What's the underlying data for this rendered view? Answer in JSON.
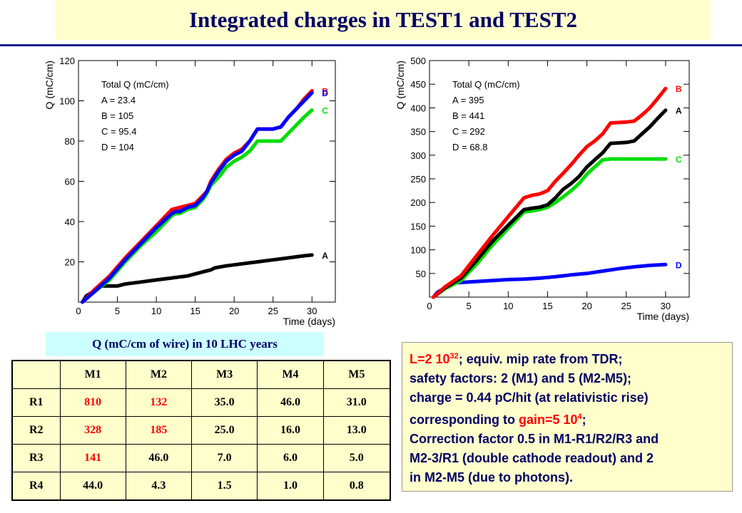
{
  "title": "Integrated charges in TEST1 and TEST2",
  "chart_data": [
    {
      "type": "line",
      "xlabel": "Time (days)",
      "ylabel": "Q (mC/cm)",
      "xlim": [
        0,
        33
      ],
      "ylim": [
        0,
        120
      ],
      "xticks": [
        0,
        5,
        10,
        15,
        20,
        25,
        30
      ],
      "yticks": [
        20,
        40,
        60,
        80,
        100,
        120
      ],
      "legend_title": "Total Q (mC/cm)",
      "legend_entries": [
        "A = 23.4",
        "B = 105",
        "C = 95.4",
        "D = 104"
      ],
      "series": [
        {
          "name": "A",
          "color": "#000000",
          "points": [
            [
              0.5,
              0
            ],
            [
              1,
              3
            ],
            [
              3,
              8
            ],
            [
              5,
              8
            ],
            [
              6,
              9
            ],
            [
              8,
              10
            ],
            [
              10,
              11
            ],
            [
              11,
              11.5
            ],
            [
              12,
              12
            ],
            [
              13,
              12.5
            ],
            [
              14,
              13
            ],
            [
              15,
              14
            ],
            [
              16,
              15
            ],
            [
              17,
              16
            ],
            [
              17.5,
              17
            ],
            [
              19,
              18
            ],
            [
              20,
              18.5
            ],
            [
              21,
              19
            ],
            [
              22,
              19.5
            ],
            [
              23,
              20
            ],
            [
              25,
              21
            ],
            [
              27,
              22
            ],
            [
              29,
              23
            ],
            [
              30,
              23.4
            ]
          ]
        },
        {
          "name": "C",
          "color": "#00dd00",
          "points": [
            [
              0.5,
              0
            ],
            [
              2,
              5
            ],
            [
              4,
              11
            ],
            [
              6,
              20
            ],
            [
              8,
              28
            ],
            [
              10,
              35
            ],
            [
              12,
              43
            ],
            [
              12.5,
              44
            ],
            [
              13,
              44
            ],
            [
              14,
              46
            ],
            [
              15,
              47
            ],
            [
              16,
              51
            ],
            [
              16.5,
              54
            ],
            [
              17,
              58
            ],
            [
              18,
              62
            ],
            [
              19,
              67
            ],
            [
              20,
              70
            ],
            [
              21,
              72
            ],
            [
              22,
              75
            ],
            [
              23,
              80
            ],
            [
              25,
              80
            ],
            [
              26,
              80
            ],
            [
              27,
              84
            ],
            [
              28,
              88
            ],
            [
              29,
              92
            ],
            [
              30,
              95.4
            ]
          ]
        },
        {
          "name": "B",
          "color": "#ff0000",
          "points": [
            [
              0.5,
              0
            ],
            [
              2,
              6
            ],
            [
              4,
              13
            ],
            [
              6,
              22
            ],
            [
              8,
              30
            ],
            [
              10,
              38
            ],
            [
              12,
              46
            ],
            [
              13,
              47
            ],
            [
              14,
              48
            ],
            [
              15,
              49
            ],
            [
              16,
              53
            ],
            [
              16.5,
              55
            ],
            [
              17,
              60
            ],
            [
              18,
              66
            ],
            [
              19,
              71
            ],
            [
              20,
              74
            ],
            [
              21,
              76
            ],
            [
              22,
              80
            ],
            [
              23,
              86
            ],
            [
              25,
              86
            ],
            [
              26,
              87
            ],
            [
              27,
              92
            ],
            [
              28,
              96
            ],
            [
              29,
              101
            ],
            [
              30,
              105
            ]
          ]
        },
        {
          "name": "D",
          "color": "#0000ff",
          "points": [
            [
              0.5,
              0
            ],
            [
              2,
              5
            ],
            [
              4,
              12
            ],
            [
              6,
              21
            ],
            [
              8,
              29
            ],
            [
              10,
              37
            ],
            [
              12,
              44
            ],
            [
              12.5,
              45
            ],
            [
              13,
              45
            ],
            [
              14,
              47
            ],
            [
              15,
              48
            ],
            [
              16,
              52
            ],
            [
              16.5,
              55
            ],
            [
              17,
              59
            ],
            [
              18,
              65
            ],
            [
              19,
              70
            ],
            [
              20,
              73
            ],
            [
              21,
              75
            ],
            [
              22,
              80
            ],
            [
              23,
              86
            ],
            [
              25,
              86
            ],
            [
              26,
              87
            ],
            [
              27,
              92
            ],
            [
              28,
              96
            ],
            [
              29,
              100
            ],
            [
              30,
              104
            ]
          ]
        }
      ]
    },
    {
      "type": "line",
      "xlabel": "Time (days)",
      "ylabel": "Q (mC/cm)",
      "xlim": [
        0,
        33
      ],
      "ylim": [
        0,
        500
      ],
      "xticks": [
        0,
        5,
        10,
        15,
        20,
        25,
        30
      ],
      "yticks": [
        50,
        100,
        150,
        200,
        250,
        300,
        350,
        400,
        450,
        500
      ],
      "legend_title": "Total Q (mC/cm)",
      "legend_entries": [
        "A = 395",
        "B = 441",
        "C = 292",
        "D = 68.8"
      ],
      "series": [
        {
          "name": "D",
          "color": "#0000ff",
          "points": [
            [
              0.5,
              0
            ],
            [
              1,
              10
            ],
            [
              2,
              20
            ],
            [
              3,
              30
            ],
            [
              5,
              32
            ],
            [
              8,
              35
            ],
            [
              10,
              37
            ],
            [
              12,
              38
            ],
            [
              14,
              40
            ],
            [
              16,
              43
            ],
            [
              18,
              47
            ],
            [
              20,
              50
            ],
            [
              22,
              55
            ],
            [
              24,
              60
            ],
            [
              26,
              64
            ],
            [
              28,
              67
            ],
            [
              30,
              68.8
            ]
          ]
        },
        {
          "name": "C",
          "color": "#00dd00",
          "points": [
            [
              0.5,
              0
            ],
            [
              2,
              18
            ],
            [
              4,
              35
            ],
            [
              6,
              70
            ],
            [
              8,
              110
            ],
            [
              10,
              145
            ],
            [
              12,
              180
            ],
            [
              13,
              182
            ],
            [
              14,
              185
            ],
            [
              15,
              190
            ],
            [
              16,
              200
            ],
            [
              17,
              212
            ],
            [
              18,
              225
            ],
            [
              19,
              240
            ],
            [
              20,
              260
            ],
            [
              21,
              275
            ],
            [
              22,
              290
            ],
            [
              23,
              292
            ],
            [
              25,
              292
            ],
            [
              28,
              292
            ],
            [
              30,
              292
            ]
          ]
        },
        {
          "name": "A",
          "color": "#000000",
          "points": [
            [
              0.5,
              0
            ],
            [
              2,
              20
            ],
            [
              4,
              40
            ],
            [
              6,
              78
            ],
            [
              8,
              118
            ],
            [
              10,
              152
            ],
            [
              12,
              185
            ],
            [
              13,
              188
            ],
            [
              14,
              190
            ],
            [
              15,
              195
            ],
            [
              16,
              210
            ],
            [
              17,
              228
            ],
            [
              18,
              240
            ],
            [
              19,
              255
            ],
            [
              20,
              275
            ],
            [
              21,
              290
            ],
            [
              22,
              305
            ],
            [
              23,
              325
            ],
            [
              25,
              327
            ],
            [
              26,
              330
            ],
            [
              27,
              345
            ],
            [
              28,
              360
            ],
            [
              29,
              378
            ],
            [
              30,
              395
            ]
          ]
        },
        {
          "name": "B",
          "color": "#ff0000",
          "points": [
            [
              0.5,
              0
            ],
            [
              2,
              22
            ],
            [
              4,
              45
            ],
            [
              6,
              88
            ],
            [
              8,
              130
            ],
            [
              10,
              170
            ],
            [
              12,
              210
            ],
            [
              13,
              215
            ],
            [
              14,
              218
            ],
            [
              15,
              225
            ],
            [
              16,
              245
            ],
            [
              17,
              262
            ],
            [
              18,
              280
            ],
            [
              19,
              300
            ],
            [
              20,
              318
            ],
            [
              21,
              330
            ],
            [
              22,
              345
            ],
            [
              23,
              368
            ],
            [
              25,
              370
            ],
            [
              26,
              372
            ],
            [
              27,
              385
            ],
            [
              28,
              400
            ],
            [
              29,
              420
            ],
            [
              30,
              441
            ]
          ]
        }
      ]
    }
  ],
  "table": {
    "caption": "Q (mC/cm of wire) in 10 LHC years",
    "headers": [
      "",
      "M1",
      "M2",
      "M3",
      "M4",
      "M5"
    ],
    "rows": [
      [
        "R1",
        "810",
        "132",
        "35.0",
        "46.0",
        "31.0"
      ],
      [
        "R2",
        "328",
        "185",
        "25.0",
        "16.0",
        "13.0"
      ],
      [
        "R3",
        "141",
        "46.0",
        "7.0",
        "6.0",
        "5.0"
      ],
      [
        "R4",
        "44.0",
        "4.3",
        "1.5",
        "1.0",
        "0.8"
      ]
    ],
    "red_cells": [
      [
        0,
        1
      ],
      [
        0,
        2
      ],
      [
        1,
        1
      ],
      [
        1,
        2
      ],
      [
        2,
        1
      ]
    ]
  },
  "notes": {
    "line1_sup": "32",
    "line1_pre": "L=2 10",
    "line1_post": "; equiv. mip rate from TDR;",
    "line2": "safety factors: 2 (M1) and 5 (M2-M5);",
    "line3": "charge = 0.44 pC/hit (at relativistic rise)",
    "line4_pre": "corresponding to ",
    "line4_red": "gain=5 10",
    "line4_sup": "4",
    "line4_post": ";",
    "line5": "Correction factor 0.5 in M1-R1/R2/R3 and",
    "line6": "M2-3/R1 (double cathode readout) and 2",
    "line7": "in M2-M5 (due to photons)."
  }
}
